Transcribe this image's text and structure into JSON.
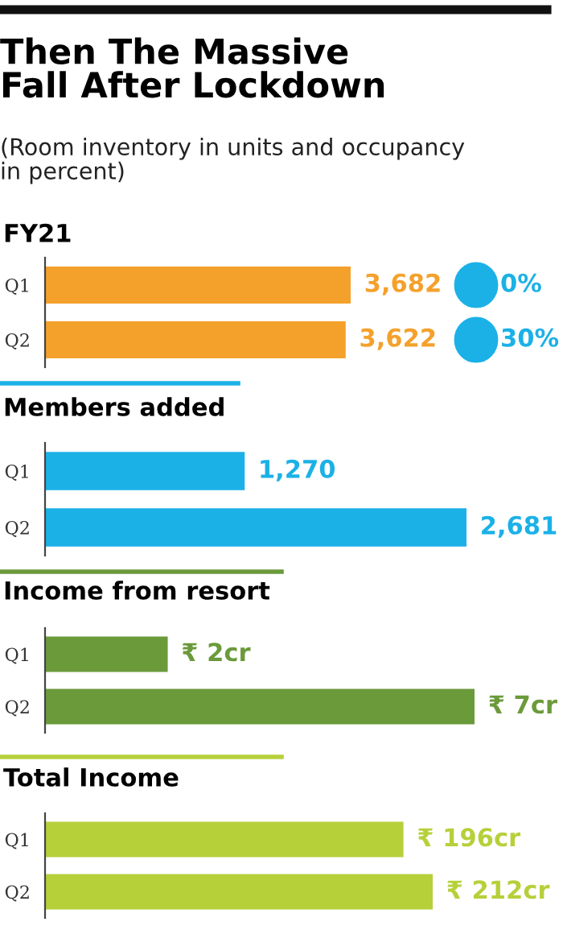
{
  "chart_data": [
    {
      "type": "other",
      "title": "Then The Massive\nFall After Lockdown",
      "subtitle": "(Room inventory in units and occupancy\nin percent)"
    },
    {
      "type": "bar",
      "orientation": "horizontal",
      "title": "FY21",
      "categories": [
        "Q1",
        "Q2"
      ],
      "values": [
        3682,
        3622
      ],
      "value_labels": [
        "3,682",
        "3,622"
      ],
      "color": "#f4a12c",
      "tick_labels": "y",
      "annotations": [
        "0%",
        "30%"
      ]
    },
    {
      "type": "bar",
      "orientation": "horizontal",
      "title": "Members added",
      "categories": [
        "Q1",
        "Q2"
      ],
      "values": [
        1270,
        2681
      ],
      "value_labels": [
        "1,270",
        "2,681"
      ],
      "color": "#1bb1e7",
      "tick_labels": "y"
    },
    {
      "type": "bar",
      "orientation": "horizontal",
      "title": "Income from resort",
      "categories": [
        "Q1",
        "Q2"
      ],
      "values": [
        2,
        7
      ],
      "value_labels": [
        "₹ 2cr",
        "₹ 7cr"
      ],
      "color": "#6b9a3b",
      "tick_labels": "y"
    },
    {
      "type": "bar",
      "orientation": "horizontal",
      "title": "Total Income",
      "categories": [
        "Q1",
        "Q2"
      ],
      "values": [
        196,
        212
      ],
      "value_labels": [
        "₹ 196cr",
        "₹ 212cr"
      ],
      "color": "#b6d03a",
      "tick_labels": "y"
    }
  ]
}
